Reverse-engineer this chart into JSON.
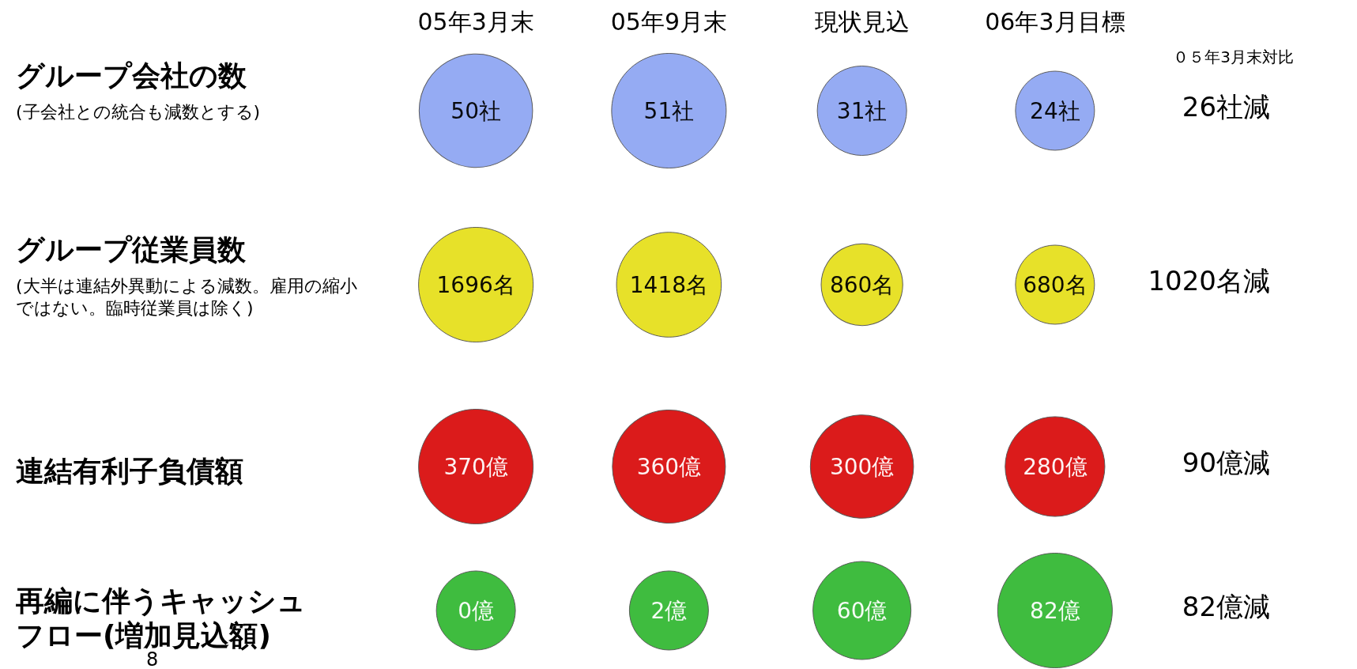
{
  "chart_data": [
    {
      "type": "other",
      "title": "グループ会社の数",
      "subtitle": "(子会社との統合も減数とする)",
      "categories": [
        "05年3月末",
        "05年9月末",
        "現状見込",
        "06年3月目標"
      ],
      "series": [
        {
          "color": "#8fa6f2",
          "values": [
            50,
            51,
            31,
            24
          ],
          "value_labels": [
            "50社",
            "51社",
            "31社",
            "24社"
          ]
        }
      ],
      "annotations": [
        "26社減",
        "０５年3月末対比"
      ]
    },
    {
      "type": "other",
      "title": "グループ従業員数",
      "subtitle": "(大半は連結外異動による減数。雇用の縮小ではない。臨時従業員は除く)",
      "series": [
        {
          "color": "#e6df1e",
          "values": [
            1696,
            1418,
            860,
            680
          ],
          "value_labels": [
            "1696名",
            "1418名",
            "860名",
            "680名"
          ]
        }
      ],
      "annotations": [
        "1020名減"
      ]
    },
    {
      "type": "other",
      "title": "連結有利子負債額",
      "series": [
        {
          "color": "#d90f0f",
          "values": [
            370,
            360,
            300,
            280
          ],
          "value_labels": [
            "370億",
            "360億",
            "300億",
            "280億"
          ]
        }
      ],
      "annotations": [
        "90億減"
      ]
    },
    {
      "type": "other",
      "title": "再編に伴うキャッシュフロー(増加見込額)",
      "series": [
        {
          "color": "#35b835",
          "values": [
            0,
            2,
            60,
            82
          ],
          "value_labels": [
            "0億",
            "2億",
            "60億",
            "82億"
          ]
        }
      ],
      "annotations": [
        "82億減",
        "8"
      ]
    }
  ]
}
